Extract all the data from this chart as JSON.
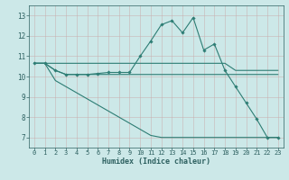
{
  "xlabel": "Humidex (Indice chaleur)",
  "xlim": [
    -0.5,
    23.5
  ],
  "ylim": [
    6.5,
    13.5
  ],
  "yticks": [
    7,
    8,
    9,
    10,
    11,
    12,
    13
  ],
  "xticks": [
    0,
    1,
    2,
    3,
    4,
    5,
    6,
    7,
    8,
    9,
    10,
    11,
    12,
    13,
    14,
    15,
    16,
    17,
    18,
    19,
    20,
    21,
    22,
    23
  ],
  "bg_color": "#cce8e8",
  "line_color": "#2d7d74",
  "line1_x": [
    0,
    1,
    2,
    3,
    4,
    5,
    6,
    7,
    8,
    9,
    10,
    11,
    12,
    13,
    14,
    15,
    16,
    17,
    18,
    19,
    20,
    21,
    22,
    23
  ],
  "line1_y": [
    10.65,
    10.65,
    10.3,
    10.1,
    10.1,
    10.1,
    10.15,
    10.2,
    10.2,
    10.2,
    11.0,
    11.75,
    12.55,
    12.75,
    12.15,
    12.9,
    11.3,
    11.6,
    10.3,
    9.5,
    8.7,
    7.9,
    7.0,
    7.0
  ],
  "line2_x": [
    0,
    1,
    2,
    3,
    4,
    5,
    6,
    7,
    8,
    9,
    10,
    11,
    12,
    13,
    14,
    15,
    16,
    17,
    18,
    19,
    20,
    21,
    22,
    23
  ],
  "line2_y": [
    10.65,
    10.65,
    10.65,
    10.65,
    10.65,
    10.65,
    10.65,
    10.65,
    10.65,
    10.65,
    10.65,
    10.65,
    10.65,
    10.65,
    10.65,
    10.65,
    10.65,
    10.65,
    10.65,
    10.3,
    10.3,
    10.3,
    10.3,
    10.3
  ],
  "line3_x": [
    0,
    1,
    2,
    3,
    4,
    5,
    6,
    7,
    8,
    9,
    10,
    11,
    12,
    13,
    14,
    15,
    16,
    17,
    18,
    19,
    20,
    21,
    22,
    23
  ],
  "line3_y": [
    10.65,
    10.65,
    10.3,
    10.1,
    10.1,
    10.1,
    10.1,
    10.1,
    10.1,
    10.1,
    10.1,
    10.1,
    10.1,
    10.1,
    10.1,
    10.1,
    10.1,
    10.1,
    10.1,
    10.1,
    10.1,
    10.1,
    10.1,
    10.1
  ],
  "line4_x": [
    0,
    1,
    2,
    3,
    4,
    5,
    6,
    7,
    8,
    9,
    10,
    11,
    12,
    13,
    14,
    15,
    16,
    17,
    18,
    19,
    20,
    21,
    22,
    23
  ],
  "line4_y": [
    10.65,
    10.65,
    9.8,
    9.5,
    9.2,
    8.9,
    8.6,
    8.3,
    8.0,
    7.7,
    7.4,
    7.1,
    7.0,
    7.0,
    7.0,
    7.0,
    7.0,
    7.0,
    7.0,
    7.0,
    7.0,
    7.0,
    7.0,
    7.0
  ]
}
